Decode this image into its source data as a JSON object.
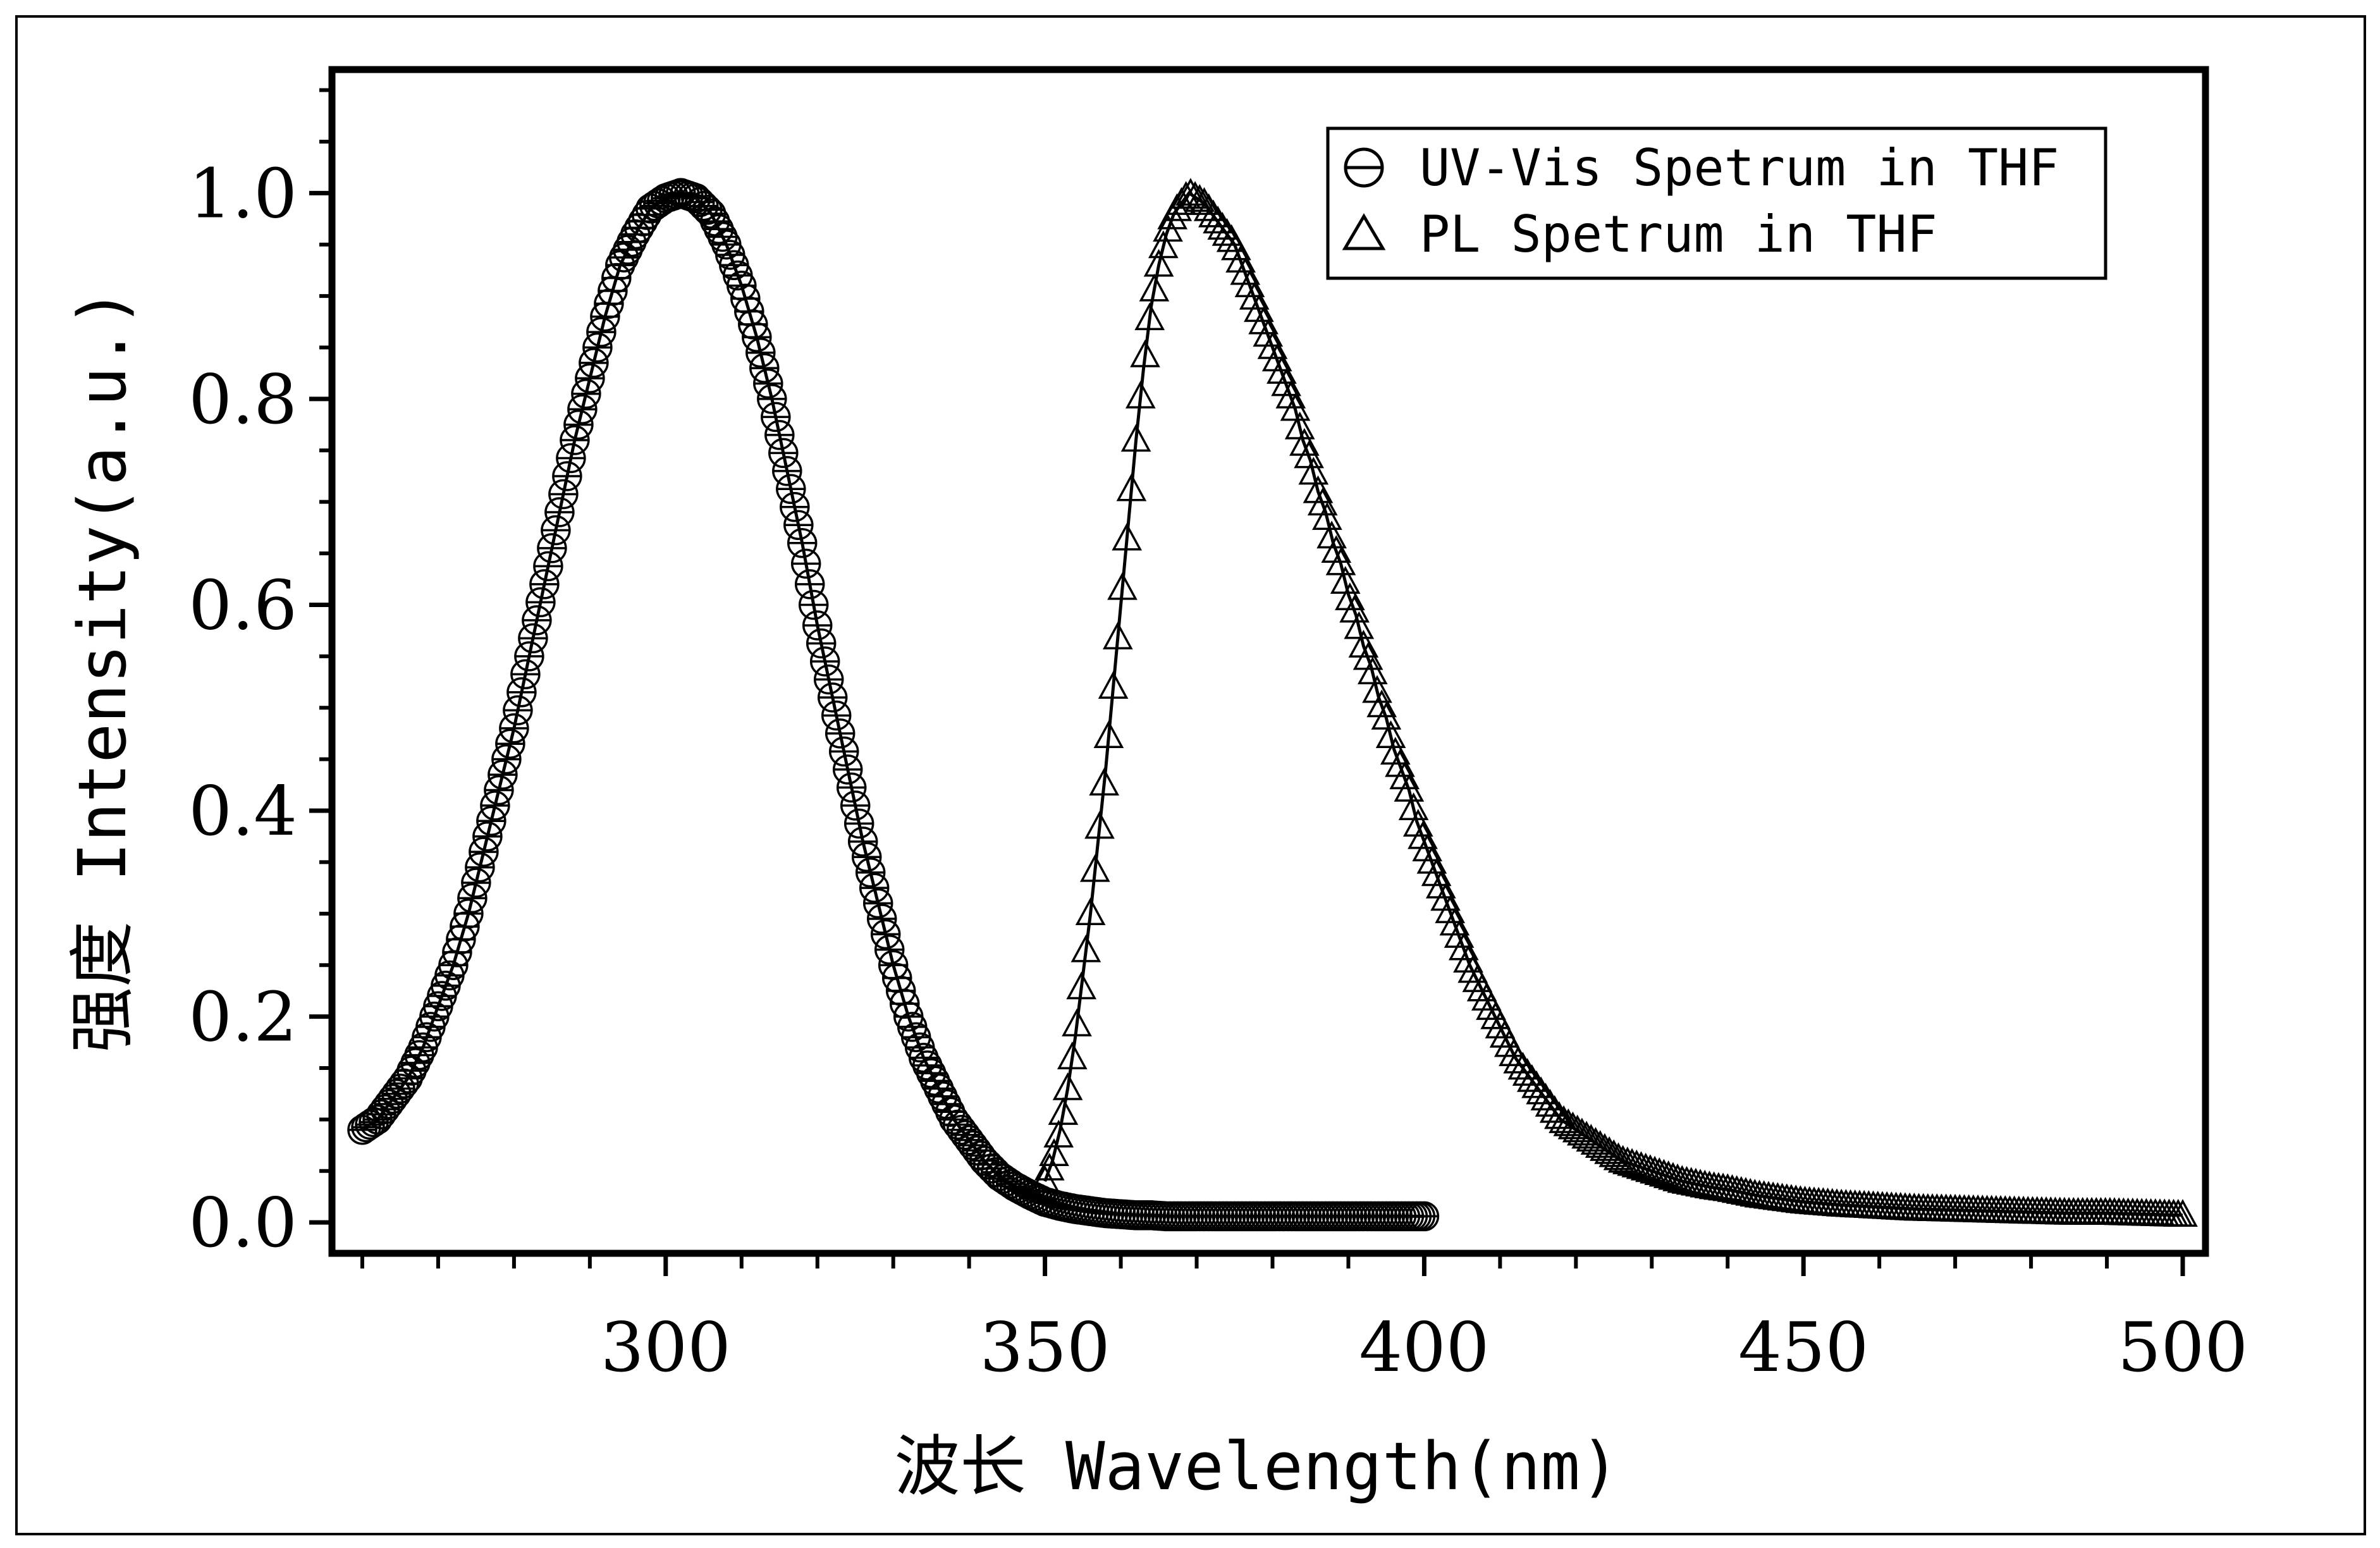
{
  "chart_data": {
    "type": "scatter",
    "title": "",
    "xlabel": "波长 Wavelength(nm)",
    "ylabel": "强度 Intensity(a.u.)",
    "xlim": [
      256,
      503
    ],
    "ylim": [
      -0.03,
      1.12
    ],
    "x_ticks": [
      300,
      350,
      400,
      450,
      500
    ],
    "x_tick_labels": [
      "300",
      "350",
      "400",
      "450",
      "500"
    ],
    "y_ticks": [
      0.0,
      0.2,
      0.4,
      0.6,
      0.8,
      1.0
    ],
    "y_tick_labels": [
      "0.0",
      "0.2",
      "0.4",
      "0.6",
      "0.8",
      "1.0"
    ],
    "grid": false,
    "legend_position": "top-right",
    "series": [
      {
        "name": "UV-Vis Spetrum in THF",
        "marker": "circle-with-bar",
        "x": [
          260,
          262,
          264,
          266,
          268,
          270,
          272,
          274,
          276,
          278,
          280,
          282,
          284,
          286,
          288,
          290,
          292,
          294,
          296,
          298,
          300,
          302,
          304,
          306,
          308,
          310,
          312,
          314,
          316,
          318,
          320,
          322,
          324,
          326,
          328,
          330,
          332,
          334,
          336,
          338,
          340,
          342,
          344,
          346,
          348,
          350,
          352,
          354,
          356,
          358,
          360,
          362,
          364,
          366,
          368,
          370,
          375,
          380,
          385,
          390,
          395,
          400
        ],
        "values": [
          0.09,
          0.1,
          0.12,
          0.14,
          0.17,
          0.21,
          0.25,
          0.3,
          0.36,
          0.42,
          0.48,
          0.55,
          0.62,
          0.69,
          0.76,
          0.82,
          0.88,
          0.93,
          0.96,
          0.985,
          0.995,
          1.0,
          0.995,
          0.98,
          0.95,
          0.91,
          0.86,
          0.8,
          0.73,
          0.66,
          0.58,
          0.51,
          0.44,
          0.37,
          0.31,
          0.25,
          0.2,
          0.16,
          0.13,
          0.1,
          0.08,
          0.06,
          0.045,
          0.035,
          0.027,
          0.02,
          0.016,
          0.013,
          0.011,
          0.009,
          0.008,
          0.007,
          0.007,
          0.006,
          0.006,
          0.006,
          0.006,
          0.006,
          0.006,
          0.006,
          0.006,
          0.006
        ]
      },
      {
        "name": "PL Spetrum in THF",
        "marker": "triangle",
        "x": [
          350,
          351,
          352,
          353,
          354,
          355,
          356,
          357,
          358,
          359,
          360,
          361,
          362,
          363,
          364,
          365,
          366,
          367,
          368,
          369,
          370,
          371,
          372,
          373,
          374,
          375,
          376,
          377,
          378,
          379,
          380,
          381,
          382,
          383,
          384,
          385,
          386,
          387,
          388,
          389,
          390,
          391,
          392,
          393,
          394,
          395,
          396,
          397,
          398,
          399,
          400,
          402,
          404,
          406,
          408,
          410,
          412,
          414,
          416,
          418,
          420,
          422,
          424,
          426,
          428,
          430,
          432,
          434,
          436,
          438,
          440,
          442,
          444,
          446,
          448,
          450,
          455,
          460,
          465,
          470,
          475,
          480,
          485,
          490,
          495,
          500
        ],
        "values": [
          0.04,
          0.06,
          0.09,
          0.13,
          0.18,
          0.24,
          0.3,
          0.37,
          0.44,
          0.52,
          0.6,
          0.68,
          0.76,
          0.83,
          0.89,
          0.93,
          0.96,
          0.98,
          0.99,
          1.0,
          0.995,
          0.99,
          0.98,
          0.97,
          0.96,
          0.95,
          0.93,
          0.91,
          0.89,
          0.87,
          0.85,
          0.83,
          0.81,
          0.79,
          0.76,
          0.74,
          0.71,
          0.69,
          0.66,
          0.64,
          0.61,
          0.59,
          0.56,
          0.54,
          0.51,
          0.49,
          0.46,
          0.44,
          0.42,
          0.39,
          0.37,
          0.33,
          0.29,
          0.25,
          0.22,
          0.19,
          0.16,
          0.14,
          0.12,
          0.1,
          0.09,
          0.08,
          0.07,
          0.06,
          0.055,
          0.05,
          0.045,
          0.04,
          0.037,
          0.034,
          0.032,
          0.029,
          0.026,
          0.024,
          0.022,
          0.02,
          0.017,
          0.015,
          0.013,
          0.012,
          0.011,
          0.01,
          0.009,
          0.009,
          0.008,
          0.007
        ]
      }
    ]
  }
}
